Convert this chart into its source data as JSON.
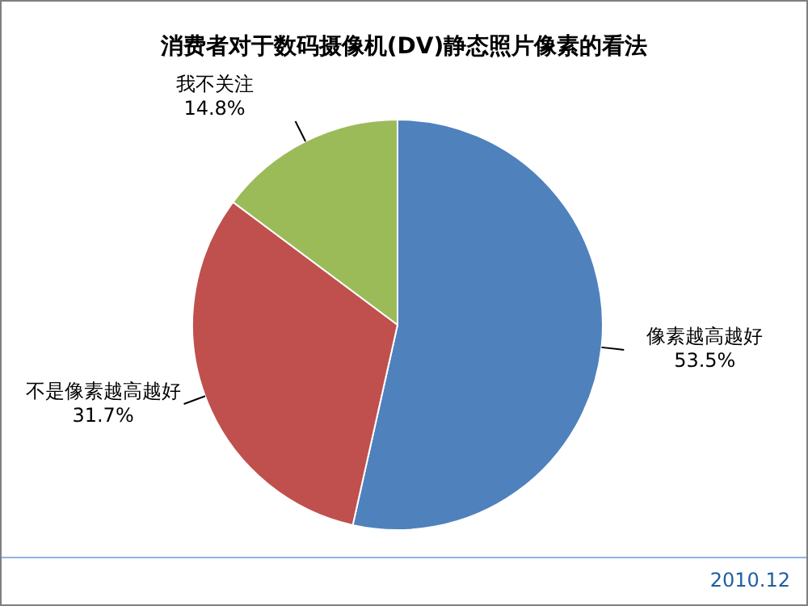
{
  "chart_data": {
    "type": "pie",
    "title": "消费者对于数码摄像机(DV)静态照片像素的看法",
    "categories": [
      "像素越高越好",
      "不是像素越高越好",
      "我不关注"
    ],
    "values": [
      53.5,
      31.7,
      14.8
    ],
    "value_labels": [
      "53.5%",
      "31.7%",
      "14.8%"
    ],
    "colors": [
      "#4f81bd",
      "#c0504d",
      "#9bbb59"
    ],
    "annotations": [
      "2010.12"
    ],
    "legend": false
  }
}
